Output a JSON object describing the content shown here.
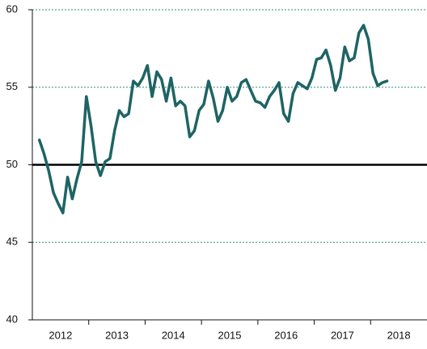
{
  "chart_data": {
    "type": "line",
    "categories": [
      null,
      null,
      null,
      null,
      null,
      null,
      "2012",
      null,
      null,
      null,
      null,
      null,
      null,
      null,
      null,
      null,
      null,
      null,
      "2013",
      null,
      null,
      null,
      null,
      null,
      null,
      null,
      null,
      null,
      null,
      null,
      "2014",
      null,
      null,
      null,
      null,
      null,
      null,
      null,
      null,
      null,
      null,
      null,
      "2015",
      null,
      null,
      null,
      null,
      null,
      null,
      null,
      null,
      null,
      null,
      null,
      "2016",
      null,
      null,
      null,
      null,
      null,
      null,
      null,
      null,
      null,
      null,
      null,
      "2017",
      null,
      null,
      null,
      null,
      null,
      null,
      null,
      null,
      null,
      null,
      null,
      "2018",
      null,
      null,
      null,
      null,
      null
    ],
    "series": [
      {
        "color": "#1e6464",
        "values": [
          null,
          51.6,
          50.7,
          49.6,
          48.2,
          47.5,
          46.9,
          49.2,
          47.8,
          49.1,
          50.2,
          54.4,
          52.5,
          50.2,
          49.3,
          50.2,
          50.4,
          52.2,
          53.5,
          53.1,
          53.3,
          55.4,
          55.1,
          55.6,
          56.4,
          54.4,
          56.0,
          55.5,
          54.1,
          55.6,
          53.8,
          54.1,
          53.8,
          51.8,
          52.2,
          53.5,
          53.9,
          55.4,
          54.3,
          52.8,
          53.5,
          55.0,
          54.1,
          54.4,
          55.3,
          55.5,
          54.8,
          54.1,
          54.0,
          53.7,
          54.4,
          54.8,
          55.3,
          53.3,
          52.8,
          54.6,
          55.3,
          55.1,
          54.9,
          55.6,
          56.8,
          56.9,
          57.4,
          56.4,
          54.8,
          55.6,
          57.6,
          56.7,
          56.9,
          58.5,
          59.0,
          58.1,
          55.9,
          55.1,
          55.3,
          55.4,
          null,
          null,
          null,
          null,
          null,
          null,
          null,
          null
        ]
      }
    ],
    "ylim": [
      40,
      60
    ],
    "yticks": [
      40,
      45,
      50,
      55,
      60
    ],
    "grid": true,
    "grid_color": "#2e8b7a",
    "reference_line": 50
  }
}
